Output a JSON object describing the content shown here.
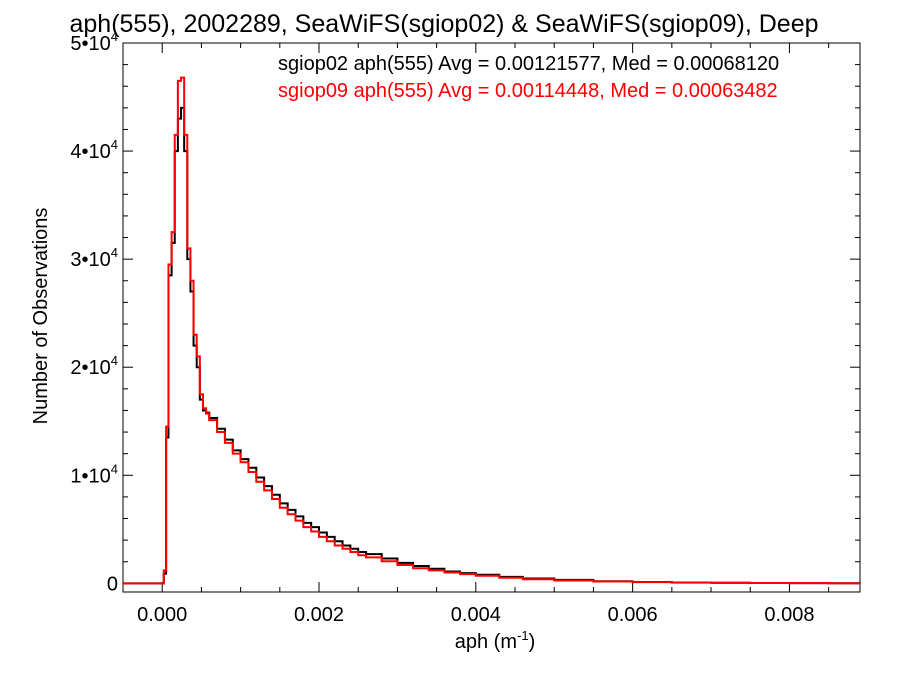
{
  "chart_data": {
    "type": "line",
    "title": "aph(555), 2002289, SeaWiFS(sgiop02) & SeaWiFS(sgiop09), Deep",
    "xlabel": "aph (m",
    "xlabel_sup": "-1",
    "xlabel_end": ")",
    "ylabel": "Number of Observations",
    "xlim": [
      -0.0005,
      0.0089
    ],
    "ylim": [
      -800,
      50000
    ],
    "x_ticks": [
      {
        "value": 0.0,
        "label": "0.000"
      },
      {
        "value": 0.002,
        "label": "0.002"
      },
      {
        "value": 0.004,
        "label": "0.004"
      },
      {
        "value": 0.006,
        "label": "0.006"
      },
      {
        "value": 0.008,
        "label": "0.008"
      }
    ],
    "y_ticks": [
      {
        "value": 0,
        "label": "0",
        "sup": ""
      },
      {
        "value": 10000,
        "label": "1•10",
        "sup": "4"
      },
      {
        "value": 20000,
        "label": "2•10",
        "sup": "4"
      },
      {
        "value": 30000,
        "label": "3•10",
        "sup": "4"
      },
      {
        "value": 40000,
        "label": "4•10",
        "sup": "4"
      },
      {
        "value": 50000,
        "label": "5•10",
        "sup": "4"
      }
    ],
    "series": [
      {
        "name": "sgiop02",
        "legend": "sgiop02 aph(555) Avg = 0.00121577, Med = 0.00068120",
        "color": "#000000",
        "x": [
          -0.0005,
          -0.0001,
          2e-05,
          5e-05,
          8e-05,
          0.00012,
          0.00016,
          0.0002,
          0.00024,
          0.00028,
          0.00032,
          0.00036,
          0.0004,
          0.00044,
          0.00048,
          0.00052,
          0.00056,
          0.0006,
          0.0007,
          0.0008,
          0.0009,
          0.001,
          0.0011,
          0.0012,
          0.0013,
          0.0014,
          0.0015,
          0.0016,
          0.0017,
          0.0018,
          0.0019,
          0.002,
          0.0021,
          0.0022,
          0.0023,
          0.0024,
          0.0025,
          0.0026,
          0.0028,
          0.003,
          0.0032,
          0.0034,
          0.0036,
          0.0038,
          0.004,
          0.0043,
          0.0046,
          0.005,
          0.0055,
          0.006,
          0.0065,
          0.007,
          0.0075,
          0.008,
          0.0085,
          0.0089
        ],
        "y": [
          0,
          0,
          900,
          13500,
          28500,
          31500,
          40000,
          43000,
          44000,
          40000,
          30000,
          27000,
          22000,
          20000,
          17000,
          16000,
          15800,
          15300,
          14300,
          13300,
          12300,
          11500,
          10700,
          9800,
          9000,
          8200,
          7400,
          6800,
          6200,
          5600,
          5200,
          4700,
          4300,
          3900,
          3500,
          3200,
          2900,
          2700,
          2300,
          1900,
          1600,
          1350,
          1100,
          950,
          800,
          600,
          450,
          320,
          200,
          130,
          80,
          50,
          30,
          20,
          10,
          5
        ]
      },
      {
        "name": "sgiop09",
        "legend": "sgiop09 aph(555) Avg = 0.00114448, Med = 0.00063482",
        "color": "#ff0000",
        "x": [
          -0.0005,
          -0.0001,
          2e-05,
          5e-05,
          8e-05,
          0.00012,
          0.00016,
          0.0002,
          0.00024,
          0.00028,
          0.00032,
          0.00036,
          0.0004,
          0.00044,
          0.00048,
          0.00052,
          0.00056,
          0.0006,
          0.0007,
          0.0008,
          0.0009,
          0.001,
          0.0011,
          0.0012,
          0.0013,
          0.0014,
          0.0015,
          0.0016,
          0.0017,
          0.0018,
          0.0019,
          0.002,
          0.0021,
          0.0022,
          0.0023,
          0.0024,
          0.0025,
          0.0026,
          0.0028,
          0.003,
          0.0032,
          0.0034,
          0.0036,
          0.0038,
          0.004,
          0.0043,
          0.0046,
          0.005,
          0.0055,
          0.006,
          0.0065,
          0.007,
          0.0075,
          0.008,
          0.0085,
          0.0089
        ],
        "y": [
          0,
          0,
          1200,
          14500,
          29500,
          32500,
          41500,
          46500,
          46800,
          41500,
          31000,
          28000,
          23000,
          21000,
          17500,
          16200,
          15700,
          15100,
          14000,
          13000,
          12000,
          11200,
          10300,
          9400,
          8600,
          7800,
          7000,
          6400,
          5800,
          5200,
          4800,
          4300,
          3900,
          3500,
          3200,
          2900,
          2600,
          2400,
          2050,
          1700,
          1400,
          1200,
          1000,
          850,
          700,
          520,
          380,
          270,
          170,
          110,
          70,
          45,
          28,
          18,
          9,
          4
        ]
      }
    ],
    "grid": false,
    "legend_position": "top-right"
  }
}
